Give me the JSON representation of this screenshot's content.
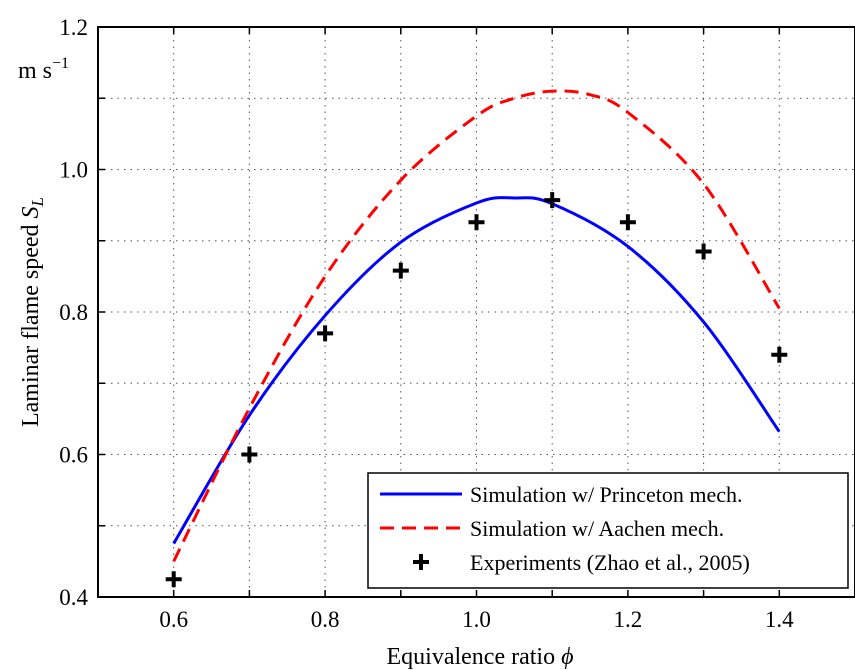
{
  "chart_data": {
    "type": "line",
    "xlabel": "Equivalence ratio",
    "xlabel_symbol": "ϕ",
    "ylabel": "Laminar flame speed",
    "ylabel_symbol": "S",
    "ylabel_symbol_sub": "L",
    "y_unit": "m s",
    "y_unit_exp": "−1",
    "xlim": [
      0.5,
      1.5
    ],
    "ylim": [
      0.4,
      1.2
    ],
    "x_ticks": [
      0.6,
      0.7,
      0.8,
      0.9,
      1.0,
      1.1,
      1.2,
      1.3,
      1.4
    ],
    "x_tick_labels": [
      "0.6",
      "0.8",
      "1.0",
      "1.2",
      "1.4"
    ],
    "y_ticks": [
      0.4,
      0.5,
      0.6,
      0.7,
      0.8,
      0.9,
      1.0,
      1.1,
      1.2
    ],
    "y_tick_labels": [
      "0.4",
      "0.6",
      "0.8",
      "1.0",
      "1.2"
    ],
    "grid": true,
    "legend_position": "bottom-right",
    "series": [
      {
        "name": "Simulation w/ Princeton mech.",
        "kind": "line",
        "style": "solid",
        "color": "#0000ff",
        "x": [
          0.6,
          0.7,
          0.8,
          0.9,
          1.0,
          1.05,
          1.1,
          1.2,
          1.3,
          1.4
        ],
        "y": [
          0.475,
          0.655,
          0.795,
          0.898,
          0.953,
          0.96,
          0.952,
          0.892,
          0.786,
          0.632
        ]
      },
      {
        "name": "Simulation w/ Aachen mech.",
        "kind": "line",
        "style": "dashed",
        "color": "#ff0000",
        "x": [
          0.6,
          0.7,
          0.8,
          0.9,
          1.0,
          1.05,
          1.1,
          1.15,
          1.2,
          1.3,
          1.4
        ],
        "y": [
          0.45,
          0.665,
          0.85,
          0.985,
          1.075,
          1.1,
          1.11,
          1.105,
          1.08,
          0.98,
          0.805
        ]
      },
      {
        "name": "Experiments (Zhao et al., 2005)",
        "kind": "marker",
        "marker": "+",
        "color": "#000000",
        "x": [
          0.6,
          0.7,
          0.8,
          0.9,
          1.0,
          1.1,
          1.2,
          1.3,
          1.4
        ],
        "y": [
          0.425,
          0.6,
          0.77,
          0.858,
          0.926,
          0.957,
          0.926,
          0.885,
          0.74
        ]
      }
    ]
  }
}
